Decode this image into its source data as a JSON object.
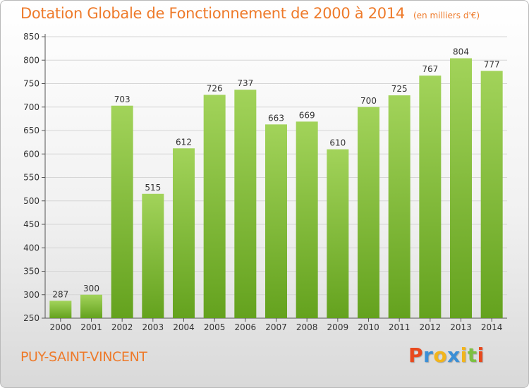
{
  "header": {
    "title": "Dotation Globale de Fonctionnement de 2000 à 2014",
    "unit": "(en milliers d'€)"
  },
  "footer": {
    "commune": "PUY-SAINT-VINCENT",
    "logo_text": "Proxiti",
    "logo_colors": [
      "#e8491d",
      "#3b8fd6",
      "#f2b51c",
      "#3b8fd6",
      "#f2b51c",
      "#7cc142",
      "#e8491d"
    ]
  },
  "colors": {
    "bar_top": "#a2d35a",
    "bar_bottom": "#64a21e",
    "grid": "#d5d5d5",
    "accent": "#ee7a2a"
  },
  "chart_data": {
    "type": "bar",
    "title": "Dotation Globale de Fonctionnement de 2000 à 2014",
    "subtitle": "(en milliers d'€)",
    "xlabel": "",
    "ylabel": "",
    "categories": [
      "2000",
      "2001",
      "2002",
      "2003",
      "2004",
      "2005",
      "2006",
      "2007",
      "2008",
      "2009",
      "2010",
      "2011",
      "2012",
      "2013",
      "2014"
    ],
    "values": [
      287,
      300,
      703,
      515,
      612,
      726,
      737,
      663,
      669,
      610,
      700,
      725,
      767,
      804,
      777
    ],
    "ylim": [
      250,
      850
    ],
    "yticks": [
      250,
      300,
      350,
      400,
      450,
      500,
      550,
      600,
      650,
      700,
      750,
      800,
      850
    ],
    "grid": true,
    "data_labels": true
  }
}
